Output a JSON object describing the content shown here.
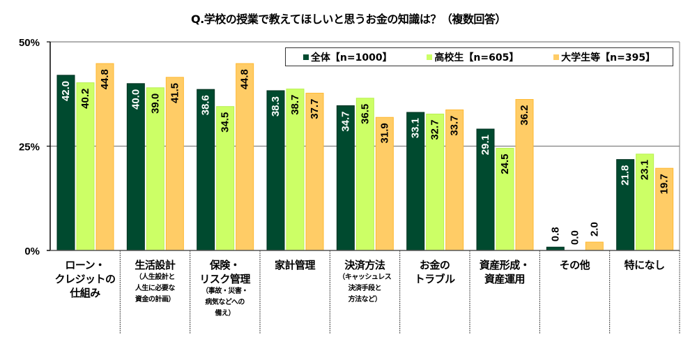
{
  "chart_data": {
    "type": "bar",
    "title": "Q.学校の授業で教えてほしいと思うお金の知識は？（複数回答）",
    "xlabel": "",
    "ylabel": "",
    "ylim": [
      0,
      50
    ],
    "yticks": [
      {
        "value": 0,
        "label": "0%"
      },
      {
        "value": 25,
        "label": "25%"
      },
      {
        "value": 50,
        "label": "50%"
      }
    ],
    "grid": true,
    "legend_position": "top-right",
    "categories": [
      {
        "main": [
          "ローン・",
          "クレジットの",
          "仕組み"
        ],
        "sub": []
      },
      {
        "main": [
          "生活設計"
        ],
        "sub": [
          "（人生設計と",
          "人生に必要な",
          "資金の計画）"
        ]
      },
      {
        "main": [
          "保険・",
          "リスク管理"
        ],
        "sub": [
          "（事故・災害・",
          "病気などへの",
          "備え）"
        ]
      },
      {
        "main": [
          "家計管理"
        ],
        "sub": []
      },
      {
        "main": [
          "決済方法"
        ],
        "sub": [
          "（キャッシュレス",
          "決済手段と",
          "方法など）"
        ]
      },
      {
        "main": [
          "お金の",
          "トラブル"
        ],
        "sub": []
      },
      {
        "main": [
          "資産形成・",
          "資産運用"
        ],
        "sub": []
      },
      {
        "main": [
          "その他"
        ],
        "sub": []
      },
      {
        "main": [
          "特になし"
        ],
        "sub": []
      }
    ],
    "series": [
      {
        "name": "全体【n=1000】",
        "color": "#004a2f",
        "label_color": "#ffffff",
        "values": [
          42.0,
          40.0,
          38.6,
          38.3,
          34.7,
          33.1,
          29.1,
          0.8,
          21.8
        ]
      },
      {
        "name": "高校生【n=605】",
        "color": "#ccff66",
        "label_color": "#000000",
        "values": [
          40.2,
          39.0,
          34.5,
          38.7,
          36.5,
          32.7,
          24.5,
          0.0,
          23.1
        ]
      },
      {
        "name": "大学生等【n=395】",
        "color": "#ffcc66",
        "label_color": "#000000",
        "values": [
          44.8,
          41.5,
          44.8,
          37.7,
          31.9,
          33.7,
          36.2,
          2.0,
          19.7
        ]
      }
    ]
  }
}
